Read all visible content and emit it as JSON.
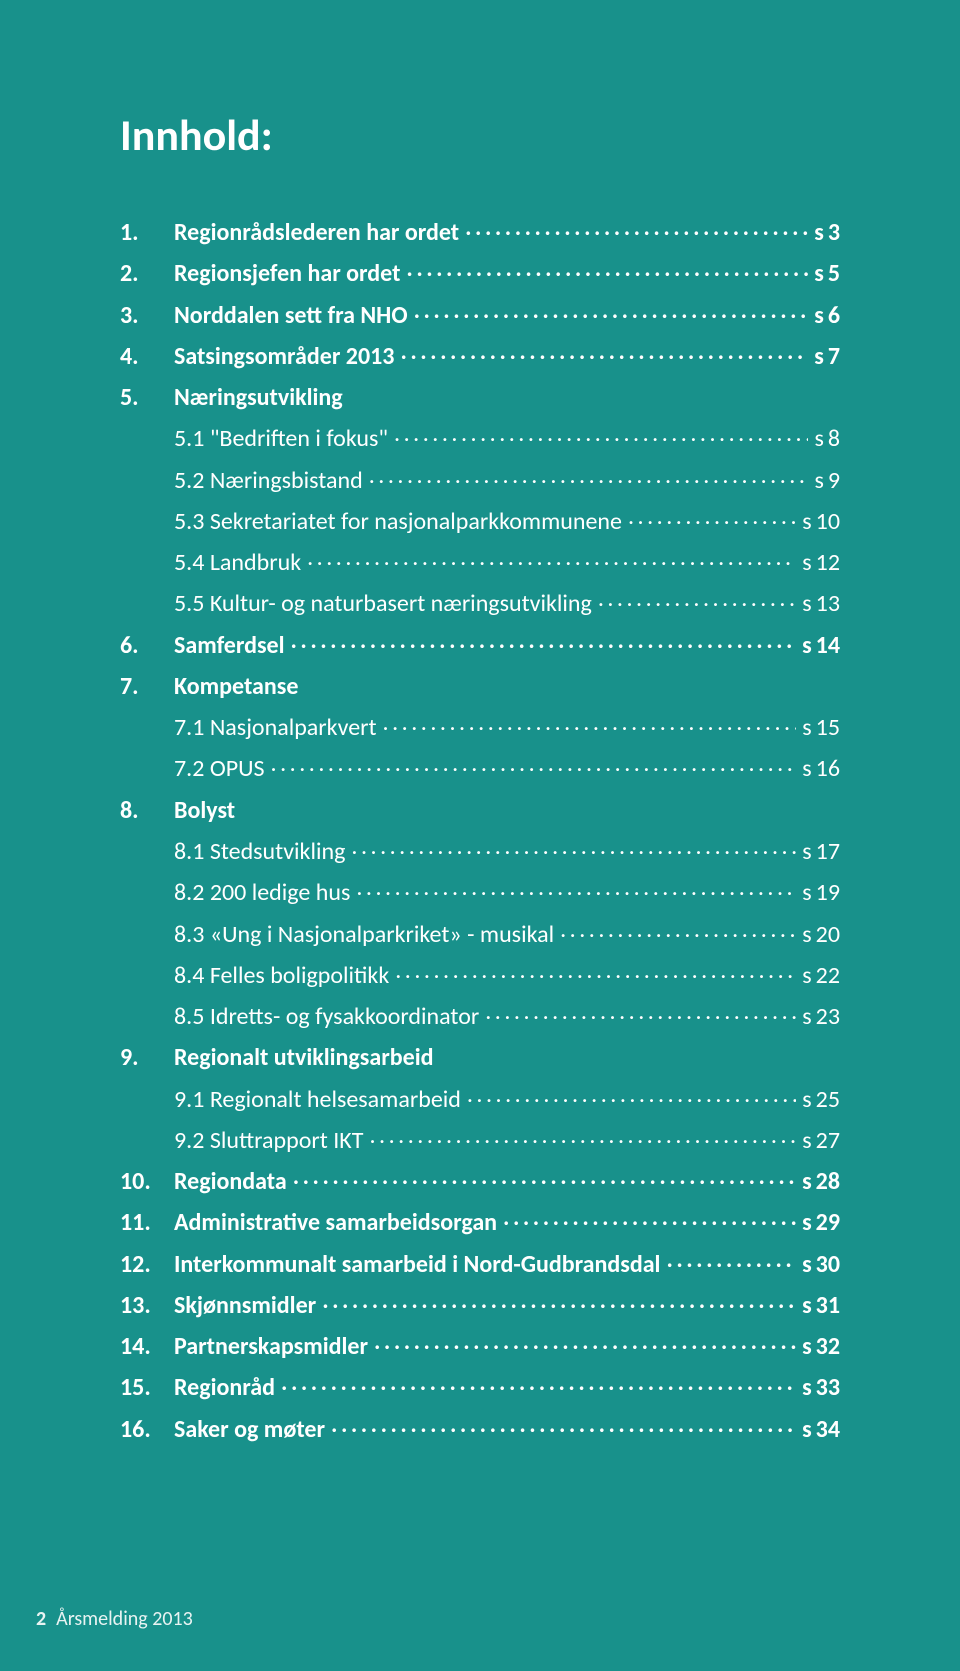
{
  "colors": {
    "background": "#18918b",
    "text": "#ffffff",
    "footer": "#e8f3f2"
  },
  "typography": {
    "title_fontsize": 44,
    "title_fontweight": 700,
    "body_fontsize": 24,
    "bold_fontweight": 700,
    "normal_fontweight": 400,
    "footer_fontsize": 20
  },
  "title": "Innhold:",
  "page_prefix": "s",
  "toc": [
    {
      "num": "1.",
      "label": "Regionrådslederen har ordet",
      "page": "3",
      "bold": true,
      "sub": false
    },
    {
      "num": "2.",
      "label": "Regionsjefen har ordet",
      "page": "5",
      "bold": true,
      "sub": false
    },
    {
      "num": "3.",
      "label": "Norddalen sett fra NHO",
      "page": "6",
      "bold": true,
      "sub": false
    },
    {
      "num": "4.",
      "label": "Satsingsområder 2013",
      "page": "7",
      "bold": true,
      "sub": false
    },
    {
      "num": "5.",
      "label": "Næringsutvikling",
      "page": "",
      "bold": true,
      "sub": false
    },
    {
      "num": "",
      "label": "5.1 \"Bedriften i fokus\"",
      "page": "8",
      "bold": false,
      "sub": true
    },
    {
      "num": "",
      "label": "5.2 Næringsbistand",
      "page": "9",
      "bold": false,
      "sub": true
    },
    {
      "num": "",
      "label": "5.3 Sekretariatet for nasjonalparkkommunene",
      "page": "10",
      "bold": false,
      "sub": true
    },
    {
      "num": "",
      "label": "5.4 Landbruk",
      "page": "12",
      "bold": false,
      "sub": true
    },
    {
      "num": "",
      "label": "5.5 Kultur- og naturbasert næringsutvikling",
      "page": "13",
      "bold": false,
      "sub": true
    },
    {
      "num": "6.",
      "label": "Samferdsel",
      "page": "14",
      "bold": true,
      "sub": false
    },
    {
      "num": "7.",
      "label": "Kompetanse",
      "page": "",
      "bold": true,
      "sub": false
    },
    {
      "num": "",
      "label": "7.1 Nasjonalparkvert",
      "page": "15",
      "bold": false,
      "sub": true
    },
    {
      "num": "",
      "label": "7.2 OPUS",
      "page": "16",
      "bold": false,
      "sub": true
    },
    {
      "num": "8.",
      "label": "Bolyst",
      "page": "",
      "bold": true,
      "sub": false
    },
    {
      "num": "",
      "label": "8.1 Stedsutvikling",
      "page": "17",
      "bold": false,
      "sub": true
    },
    {
      "num": "",
      "label": "8.2 200 ledige hus",
      "page": "19",
      "bold": false,
      "sub": true
    },
    {
      "num": "",
      "label": "8.3 «Ung i Nasjonalparkriket» - musikal",
      "page": "20",
      "bold": false,
      "sub": true
    },
    {
      "num": "",
      "label": "8.4 Felles boligpolitikk",
      "page": "22",
      "bold": false,
      "sub": true
    },
    {
      "num": "",
      "label": "8.5 Idretts- og fysakkoordinator",
      "page": "23",
      "bold": false,
      "sub": true
    },
    {
      "num": "9.",
      "label": "Regionalt utviklingsarbeid",
      "page": "",
      "bold": true,
      "sub": false
    },
    {
      "num": "",
      "label": "9.1 Regionalt helsesamarbeid",
      "page": "25",
      "bold": false,
      "sub": true
    },
    {
      "num": "",
      "label": "9.2 Sluttrapport IKT",
      "page": "27",
      "bold": false,
      "sub": true
    },
    {
      "num": "10.",
      "label": "Regiondata",
      "page": "28",
      "bold": true,
      "sub": false
    },
    {
      "num": "11.",
      "label": "Administrative samarbeidsorgan",
      "page": "29",
      "bold": true,
      "sub": false
    },
    {
      "num": "12.",
      "label": "Interkommunalt samarbeid i Nord-Gudbrandsdal",
      "page": "30",
      "bold": true,
      "sub": false
    },
    {
      "num": "13.",
      "label": "Skjønnsmidler",
      "page": "31",
      "bold": true,
      "sub": false
    },
    {
      "num": "14.",
      "label": "Partnerskapsmidler",
      "page": "32",
      "bold": true,
      "sub": false
    },
    {
      "num": "15.",
      "label": "Regionråd",
      "page": "33",
      "bold": true,
      "sub": false
    },
    {
      "num": "16.",
      "label": "Saker og møter",
      "page": "34",
      "bold": true,
      "sub": false
    }
  ],
  "footer": {
    "page_number": "2",
    "text": "Årsmelding 2013"
  }
}
